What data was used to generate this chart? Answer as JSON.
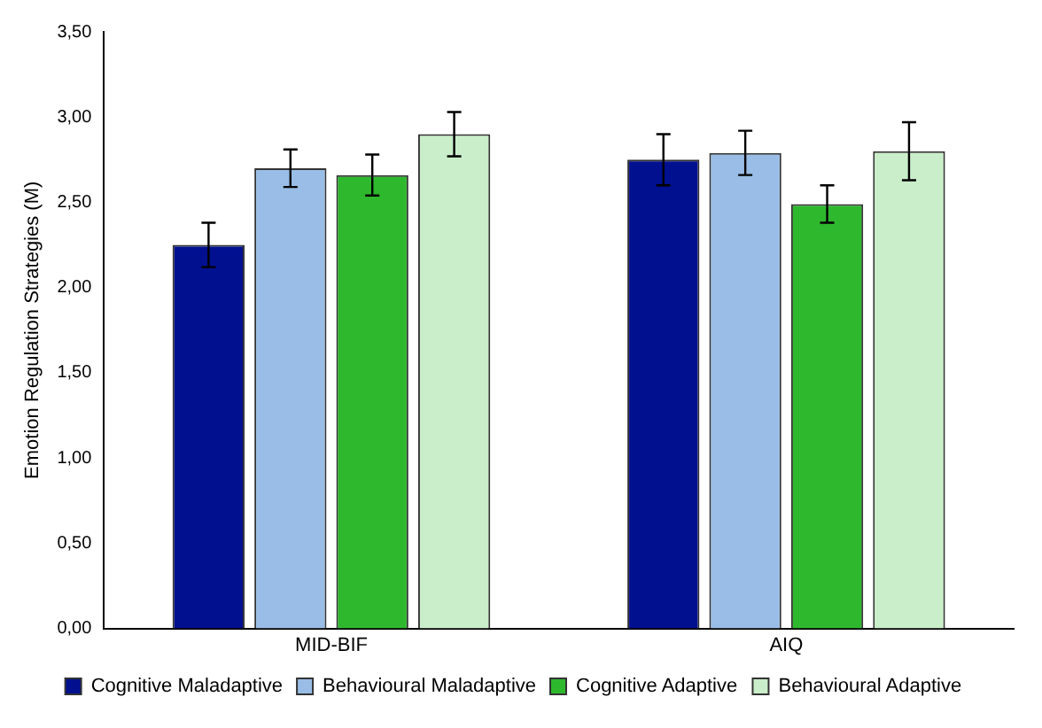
{
  "chart_data": {
    "type": "bar",
    "ylabel": "Emotion Regulation Strategies (M)",
    "categories": [
      "MID-BIF",
      "AIQ"
    ],
    "series": [
      {
        "name": "Cognitive Maladaptive",
        "color": "#00108f",
        "values": [
          2.25,
          2.75
        ],
        "errors": [
          0.13,
          0.15
        ]
      },
      {
        "name": "Behavioural Maladaptive",
        "color": "#99bde6",
        "values": [
          2.7,
          2.79
        ],
        "errors": [
          0.11,
          0.13
        ]
      },
      {
        "name": "Cognitive Adaptive",
        "color": "#2eb82e",
        "values": [
          2.66,
          2.49
        ],
        "errors": [
          0.12,
          0.11
        ]
      },
      {
        "name": "Behavioural Adaptive",
        "color": "#c9eec9",
        "values": [
          2.9,
          2.8
        ],
        "errors": [
          0.13,
          0.17
        ]
      }
    ],
    "ylim": [
      0,
      3.5
    ],
    "yticks": [
      {
        "value": 0,
        "label": "0,00"
      },
      {
        "value": 0.5,
        "label": "0,50"
      },
      {
        "value": 1,
        "label": "1,00"
      },
      {
        "value": 1.5,
        "label": "1,50"
      },
      {
        "value": 2,
        "label": "2,00"
      },
      {
        "value": 2.5,
        "label": "2,50"
      },
      {
        "value": 3,
        "label": "3,00"
      },
      {
        "value": 3.5,
        "label": "3,50"
      }
    ],
    "grid": false,
    "legend": "bottom"
  }
}
